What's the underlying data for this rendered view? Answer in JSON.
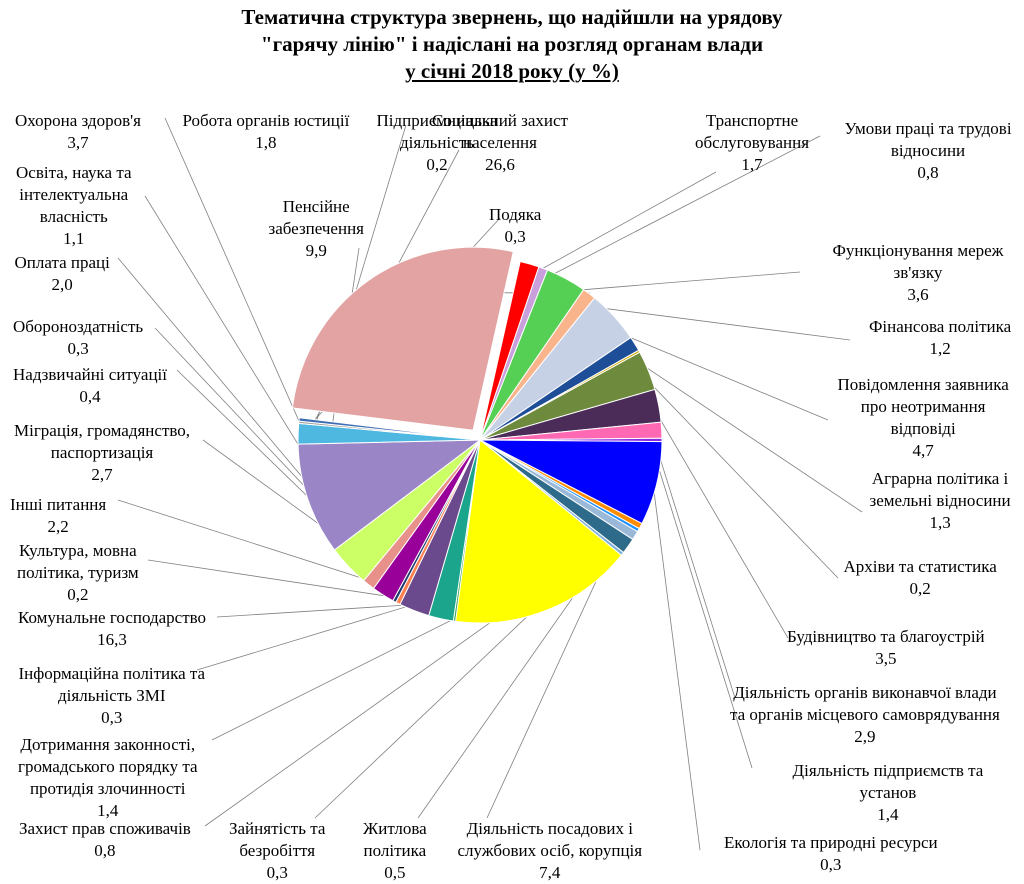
{
  "chart_data": {
    "type": "pie",
    "title_lines": [
      "Тематична структура звернень, що надійшли на урядову",
      "\"гарячу лінію\" і надіслані на розгляд органам влади",
      "у січні 2018 року (у %)"
    ],
    "unit": "%",
    "slices": [
      {
        "name": [
          "Соціальний захист",
          "населення"
        ],
        "value": "26,6",
        "num": 26.6,
        "color": "#e3a3a3"
      },
      {
        "name": [
          "Транспортне",
          "обслуговування"
        ],
        "value": "1,7",
        "num": 1.7,
        "color": "#ff0000"
      },
      {
        "name": [
          "Умови праці та трудові",
          "відносини"
        ],
        "value": "0,8",
        "num": 0.8,
        "color": "#c9a0dc"
      },
      {
        "name": [
          "Функціонування мереж",
          "зв'язку"
        ],
        "value": "3,6",
        "num": 3.6,
        "color": "#55d055"
      },
      {
        "name": [
          "Фінансова політика"
        ],
        "value": "1,2",
        "num": 1.2,
        "color": "#f9b48c"
      },
      {
        "name": [
          "Повідомлення заявника",
          "про неотримання",
          "відповіді"
        ],
        "value": "4,7",
        "num": 4.7,
        "color": "#c7d1e6"
      },
      {
        "name": [
          "Аграрна політика і",
          "земельні відносини"
        ],
        "value": "1,3",
        "num": 1.3,
        "color": "#1f4e99"
      },
      {
        "name": [
          "Архіви та статистика"
        ],
        "value": "0,2",
        "num": 0.2,
        "color": "#d6aa00"
      },
      {
        "name": [
          "Будівництво та благоустрій"
        ],
        "value": "3,5",
        "num": 3.5,
        "color": "#6e8b3d"
      },
      {
        "name": [
          "Діяльність органів виконавчої влади",
          "та органів місцевого самоврядування"
        ],
        "value": "2,9",
        "num": 2.9,
        "color": "#4b2c59"
      },
      {
        "name": [
          "Діяльність підприємств та",
          "установ"
        ],
        "value": "1,4",
        "num": 1.4,
        "color": "#ff69b4"
      },
      {
        "name": [
          "Екологія та природні ресурси"
        ],
        "value": "0,3",
        "num": 0.3,
        "color": "#8a2be2"
      },
      {
        "name": [
          "Діяльність посадових і",
          "службових осіб, корупція"
        ],
        "value": "7,4",
        "num": 7.4,
        "color": "#0000ff"
      },
      {
        "name": [
          "Житлова",
          "політика"
        ],
        "value": "0,5",
        "num": 0.5,
        "color": "#ff8c00"
      },
      {
        "name": [
          "Зайнятість та",
          "безробіття"
        ],
        "value": "0,3",
        "num": 0.3,
        "color": "#1e90ff"
      },
      {
        "name": [
          "Захист прав споживачів"
        ],
        "value": "0,8",
        "num": 0.8,
        "color": "#9ab9d9"
      },
      {
        "name": [
          "Дотримання законності,",
          "громадського порядку та",
          "протидія злочинності"
        ],
        "value": "1,4",
        "num": 1.4,
        "color": "#2e6b8a"
      },
      {
        "name": [
          "Інформаційна політика та",
          "діяльність ЗМІ"
        ],
        "value": "0,3",
        "num": 0.3,
        "color": "#7fb0d8"
      },
      {
        "name": [
          "Комунальне господарство"
        ],
        "value": "16,3",
        "num": 16.3,
        "color": "#ffff00"
      },
      {
        "name": [
          "Культура, мовна",
          "політика, туризм"
        ],
        "value": "0,2",
        "num": 0.2,
        "color": "#3aa35a"
      },
      {
        "name": [
          "Інші питання"
        ],
        "value": "2,2",
        "num": 2.2,
        "color": "#1aa58c"
      },
      {
        "name": [
          "Міграція, громадянство,",
          "паспортизація"
        ],
        "value": "2,7",
        "num": 2.7,
        "color": "#6a4a8c"
      },
      {
        "name": [
          "Надзвичайні ситуації"
        ],
        "value": "0,4",
        "num": 0.4,
        "color": "#ff7f50"
      },
      {
        "name": [
          "Обороноздатність"
        ],
        "value": "0,3",
        "num": 0.3,
        "color": "#1e3a6e"
      },
      {
        "name": [
          "Оплата праці"
        ],
        "value": "2,0",
        "num": 2.0,
        "color": "#990099"
      },
      {
        "name": [
          "Освіта, наука та",
          "інтелектуальна",
          "власність"
        ],
        "value": "1,1",
        "num": 1.1,
        "color": "#e8908a"
      },
      {
        "name": [
          "Охорона здоров'я"
        ],
        "value": "3,7",
        "num": 3.7,
        "color": "#ccff66"
      },
      {
        "name": [
          "Пенсійне",
          "забезпечення"
        ],
        "value": "9,9",
        "num": 9.9,
        "color": "#9a86c6"
      },
      {
        "name": [
          "Робота органів юстиції"
        ],
        "value": "1,8",
        "num": 1.8,
        "color": "#4fb8e0"
      },
      {
        "name": [
          "Підприємницька",
          "діяльність"
        ],
        "value": "0,2",
        "num": 0.2,
        "color": "#a0a0a0"
      },
      {
        "name": [
          "Подяка"
        ],
        "value": "0,3",
        "num": 0.3,
        "color": "#3d6eb4"
      }
    ]
  }
}
